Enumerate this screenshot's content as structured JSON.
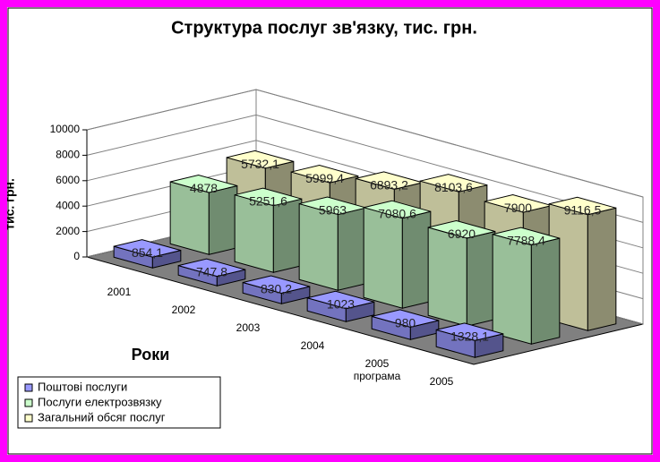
{
  "chart_data": {
    "type": "bar3d",
    "title": "Структура послуг зв'язку, тис. грн.",
    "x_label": "Роки",
    "y_label": "тис. грн.",
    "categories": [
      "2001",
      "2002",
      "2003",
      "2004",
      "2005\nпрограма",
      "2005"
    ],
    "series": [
      {
        "name": "Поштові послуги",
        "color": "#9999ff",
        "values": [
          854.1,
          747.8,
          830.2,
          1023,
          980,
          1328.1
        ],
        "value_labels": [
          "854,1",
          "747,8",
          "830,2",
          "1023",
          "980",
          "1328,1"
        ]
      },
      {
        "name": "Послуги електрозвязку",
        "color": "#ccffcc",
        "values": [
          4878,
          5251.6,
          5963,
          7080.6,
          6920,
          7788.4
        ],
        "value_labels": [
          "4878",
          "5251,6",
          "5963",
          "7080,6",
          "6920",
          "7788,4"
        ]
      },
      {
        "name": "Загальний обсяг послуг",
        "color": "#ffffcc",
        "values": [
          5732.1,
          5999.4,
          6893.2,
          8103.6,
          7900,
          9116.5
        ],
        "value_labels": [
          "5732,1",
          "5999,4",
          "6893,2",
          "8103,6",
          "7900",
          "9116,5"
        ]
      }
    ],
    "ylim": [
      0,
      10000
    ],
    "yticks": [
      0,
      2000,
      4000,
      6000,
      8000,
      10000
    ],
    "grid": true,
    "legend": "bottom-left"
  }
}
